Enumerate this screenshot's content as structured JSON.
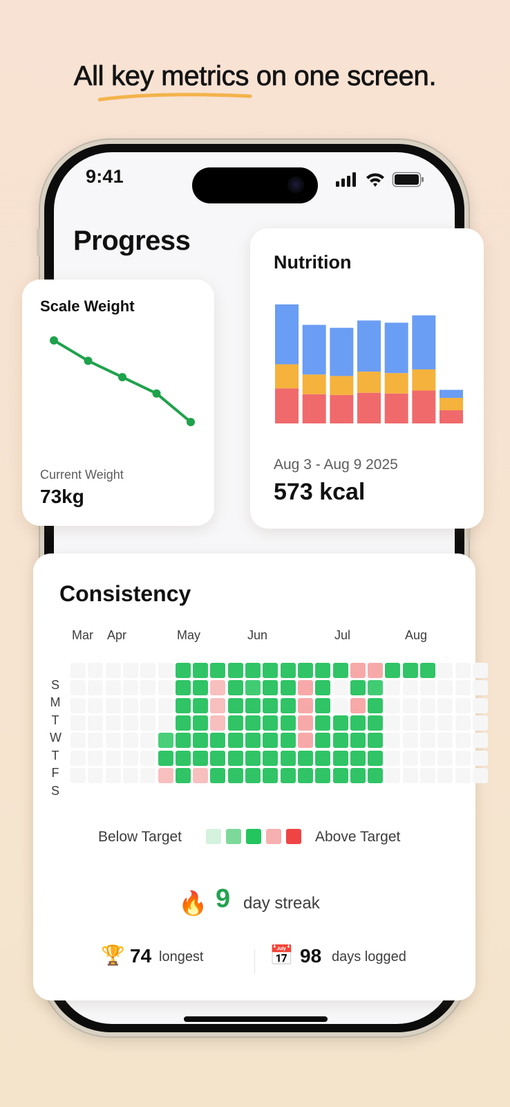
{
  "headline": "All key metrics on one screen.",
  "colors": {
    "accent": "#f3b34b",
    "green": "#22a34f",
    "bg": "#f8e2d3"
  },
  "status_bar": {
    "time": "9:41",
    "icons": [
      "signal-icon",
      "wifi-icon",
      "battery-icon"
    ]
  },
  "page": {
    "title": "Progress"
  },
  "scale_weight": {
    "title": "Scale Weight",
    "subtitle": "Current Weight",
    "value": "73kg",
    "chart_data": {
      "type": "line",
      "points": [
        5,
        4,
        3.2,
        2.4,
        1
      ],
      "color": "#1fa24c"
    }
  },
  "nutrition": {
    "title": "Nutrition",
    "date_range": "Aug 3 - Aug 9 2025",
    "value": "573 kcal",
    "chart_data": {
      "type": "bar",
      "stacked": true,
      "series": [
        {
          "color": "#f06a6c",
          "values": [
            48,
            40,
            39,
            42,
            41,
            45,
            18
          ]
        },
        {
          "color": "#f5b23c",
          "values": [
            33,
            27,
            26,
            29,
            28,
            29,
            17
          ]
        },
        {
          "color": "#6a9df4",
          "values": [
            82,
            68,
            66,
            70,
            69,
            74,
            11
          ]
        }
      ],
      "ymax": 163
    }
  },
  "consistency": {
    "title": "Consistency",
    "months": [
      "Mar",
      "Apr",
      "May",
      "Jun",
      "Jul",
      "Aug"
    ],
    "weekdays": [
      "S",
      "M",
      "T",
      "W",
      "T",
      "F",
      "S"
    ],
    "legend": {
      "left": "Below Target",
      "right": "Above Target",
      "colors": [
        "#d5f2de",
        "#7cd99a",
        "#22c55e",
        "#f7b0b0",
        "#ef4444"
      ]
    },
    "palette": {
      "0": "#f6f6f6",
      "1": "#30c466",
      "2": "#41cc74",
      "3": "#f8bfbf",
      "4": "#f7a9a9",
      "5": "#49cf79",
      "6": "#5bd185"
    },
    "grid": [
      "000000111111111144111000",
      "000000113121141012000000",
      "000000113111141041000000",
      "000000113111141111000000",
      "000005111111141111000000",
      "000001111111111111000000",
      "000003131111111111000000"
    ],
    "streak": {
      "value": "9",
      "label": "day streak"
    },
    "stats": [
      {
        "icon": "trophy-icon",
        "value": "74",
        "label": "longest"
      },
      {
        "icon": "calendar-icon",
        "value": "98",
        "label": "days logged"
      }
    ]
  }
}
